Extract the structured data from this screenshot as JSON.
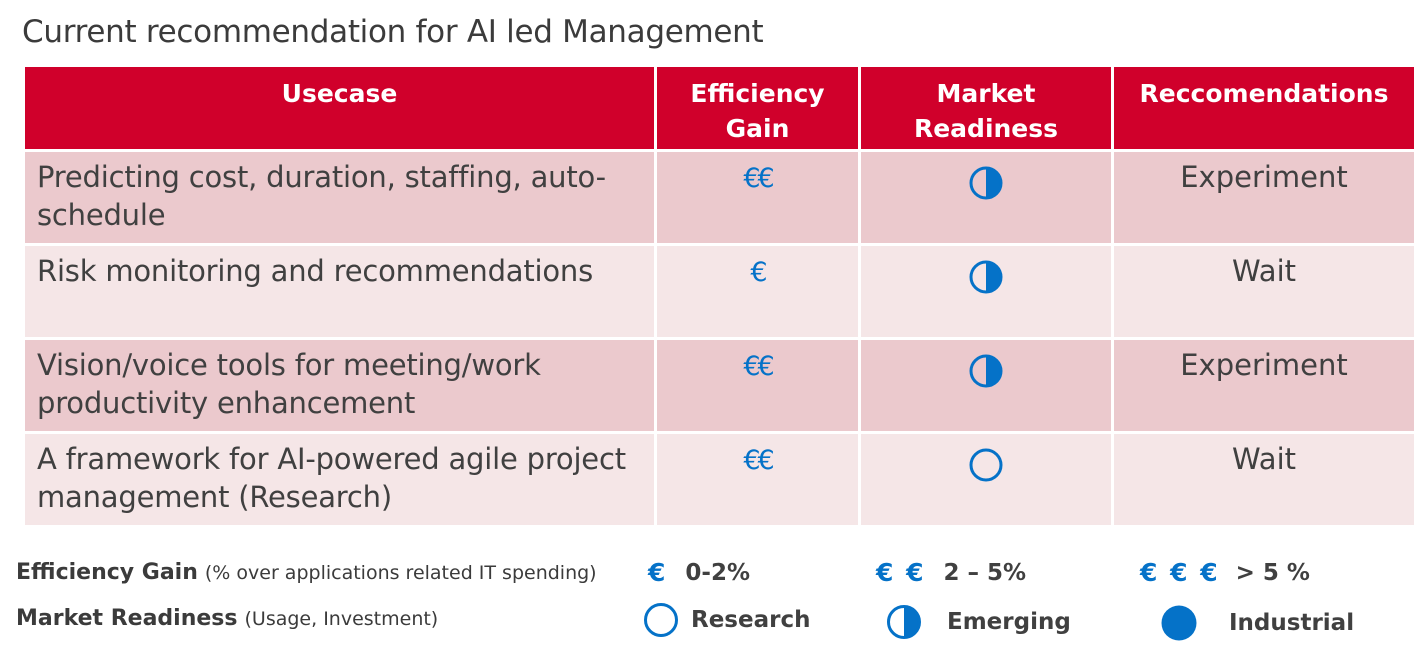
{
  "title": "Current recommendation for AI led Management",
  "table": {
    "headers": {
      "usecase": "Usecase",
      "efficiency_line1": "Efficiency",
      "efficiency_line2": "Gain",
      "readiness_line1": "Market",
      "readiness_line2": "Readiness",
      "recommendations": "Reccomendations"
    },
    "rows": [
      {
        "usecase": "Predicting cost, duration, staffing, auto-schedule",
        "efficiency": "€€",
        "readiness": "emerging",
        "recommendation": "Experiment"
      },
      {
        "usecase": "Risk monitoring and recommendations",
        "efficiency": "€",
        "readiness": "emerging",
        "recommendation": "Wait"
      },
      {
        "usecase": "Vision/voice tools for meeting/work productivity enhancement",
        "efficiency": "€€",
        "readiness": "emerging",
        "recommendation": "Experiment"
      },
      {
        "usecase": "A framework for AI-powered agile project management (Research)",
        "efficiency": "€€",
        "readiness": "research",
        "recommendation": "Wait"
      }
    ]
  },
  "legend": {
    "efficiency": {
      "label": "Efficiency Gain",
      "note": "(% over applications related IT spending)",
      "levels": [
        {
          "symbol": "€",
          "range": "0-2%"
        },
        {
          "symbol": "€ €",
          "range": "2 – 5%"
        },
        {
          "symbol": "€ € €",
          "range": "> 5 %"
        }
      ]
    },
    "readiness": {
      "label": "Market Readiness",
      "note": "(Usage, Investment)",
      "levels": [
        {
          "icon": "research",
          "label": "Research"
        },
        {
          "icon": "emerging",
          "label": "Emerging"
        },
        {
          "icon": "industrial",
          "label": "Industrial"
        }
      ]
    }
  },
  "colors": {
    "header_red": "#d0002b",
    "row_dark": "#ebc9cd",
    "row_light": "#f5e6e7",
    "accent_blue": "#0572c8"
  }
}
